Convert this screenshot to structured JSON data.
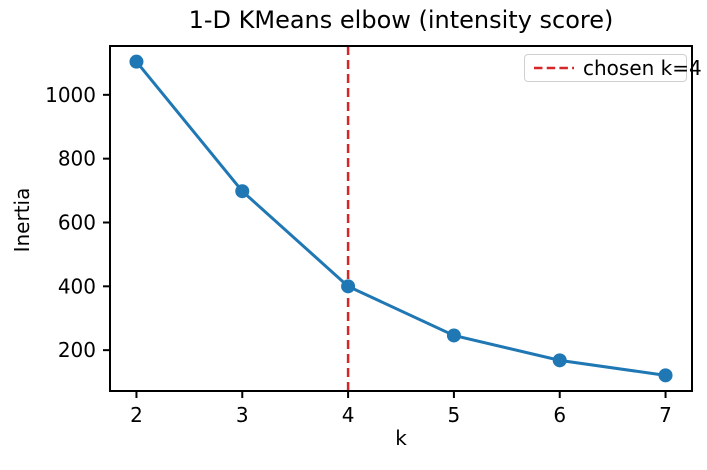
{
  "chart_data": {
    "type": "line",
    "title": "1-D KMeans elbow (intensity score)",
    "xlabel": "k",
    "ylabel": "Inertia",
    "x": [
      2,
      3,
      4,
      5,
      6,
      7
    ],
    "series": [
      {
        "name": "Inertia",
        "values": [
          1104,
          698,
          400,
          246,
          168,
          121
        ],
        "color": "#1f77b4",
        "marker": "circle",
        "line_width": 3
      }
    ],
    "x_ticks": [
      2,
      3,
      4,
      5,
      6,
      7
    ],
    "y_ticks": [
      200,
      400,
      600,
      800,
      1000
    ],
    "xlim": [
      1.75,
      7.25
    ],
    "ylim": [
      72,
      1153
    ],
    "grid": false,
    "vline": {
      "x": 4,
      "color": "#d62728",
      "style": "dashed"
    },
    "legend": {
      "position": "upper-right",
      "entries": [
        {
          "label": "chosen k=4",
          "color": "#d62728",
          "style": "dashed"
        }
      ]
    }
  },
  "colors": {
    "background": "#ffffff",
    "axis": "#000000",
    "text": "#000000",
    "series_line": "#1f77b4",
    "vline_red": "#d62728",
    "legend_border": "#d0d0d0"
  }
}
